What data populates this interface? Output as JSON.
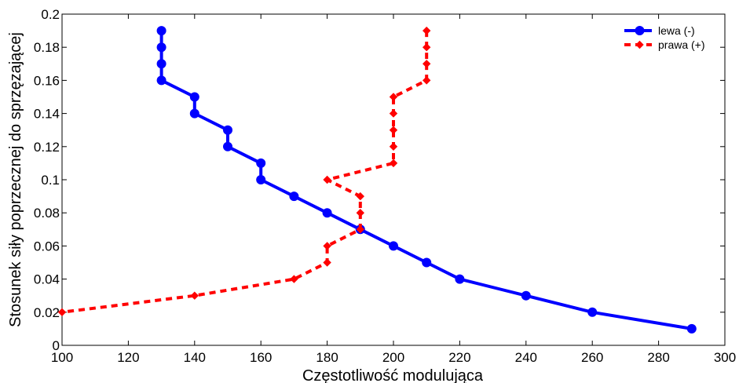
{
  "chart_data": {
    "type": "line",
    "xlabel": "Częstotliwość modulująca",
    "ylabel": "Stosunek siły poprzecznej do sprzęzającej",
    "xlim": [
      100,
      300
    ],
    "ylim": [
      0,
      0.2
    ],
    "x_ticks": [
      "100",
      "120",
      "140",
      "160",
      "180",
      "200",
      "220",
      "240",
      "260",
      "280",
      "300"
    ],
    "y_ticks": [
      "0",
      "0.02",
      "0.04",
      "0.06",
      "0.08",
      "0.1",
      "0.12",
      "0.14",
      "0.16",
      "0.18",
      "0.2"
    ],
    "grid": false,
    "legend_position": "top-right",
    "series": [
      {
        "name": "lewa (-)",
        "color": "#0000ff",
        "line_style": "solid",
        "marker": "circle",
        "points": [
          [
            130,
            0.19
          ],
          [
            130,
            0.18
          ],
          [
            130,
            0.17
          ],
          [
            130,
            0.16
          ],
          [
            140,
            0.15
          ],
          [
            140,
            0.14
          ],
          [
            150,
            0.13
          ],
          [
            150,
            0.12
          ],
          [
            160,
            0.11
          ],
          [
            160,
            0.1
          ],
          [
            170,
            0.09
          ],
          [
            180,
            0.08
          ],
          [
            190,
            0.07
          ],
          [
            200,
            0.06
          ],
          [
            210,
            0.05
          ],
          [
            220,
            0.04
          ],
          [
            240,
            0.03
          ],
          [
            260,
            0.02
          ],
          [
            290,
            0.01
          ]
        ]
      },
      {
        "name": "prawa (+)",
        "color": "#ff0000",
        "line_style": "dashed",
        "marker": "diamond",
        "points": [
          [
            210,
            0.19
          ],
          [
            210,
            0.18
          ],
          [
            210,
            0.17
          ],
          [
            210,
            0.16
          ],
          [
            200,
            0.15
          ],
          [
            200,
            0.14
          ],
          [
            200,
            0.13
          ],
          [
            200,
            0.12
          ],
          [
            200,
            0.11
          ],
          [
            180,
            0.1
          ],
          [
            190,
            0.09
          ],
          [
            190,
            0.08
          ],
          [
            190,
            0.07
          ],
          [
            180,
            0.06
          ],
          [
            180,
            0.05
          ],
          [
            170,
            0.04
          ],
          [
            140,
            0.03
          ],
          [
            100,
            0.02
          ]
        ]
      }
    ]
  }
}
